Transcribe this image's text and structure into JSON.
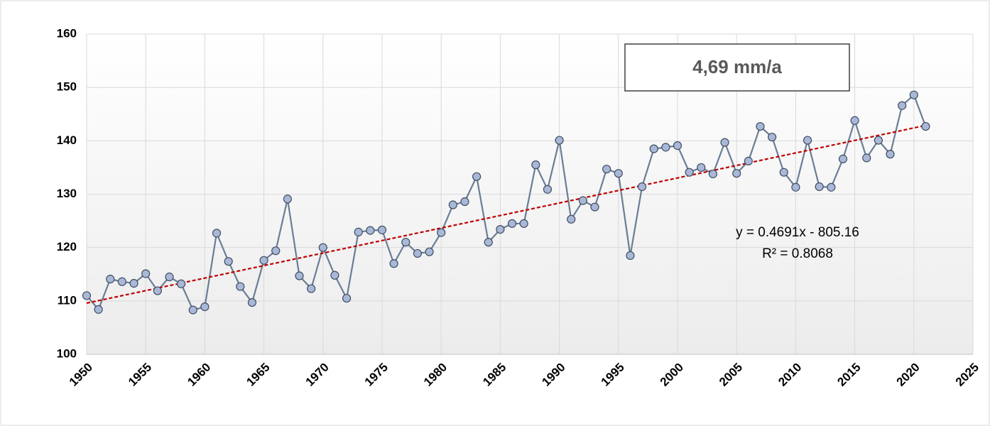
{
  "chart_data": {
    "type": "line",
    "x": [
      1950,
      1951,
      1952,
      1953,
      1954,
      1955,
      1956,
      1957,
      1958,
      1959,
      1960,
      1961,
      1962,
      1963,
      1964,
      1965,
      1966,
      1967,
      1968,
      1969,
      1970,
      1971,
      1972,
      1973,
      1974,
      1975,
      1976,
      1977,
      1978,
      1979,
      1980,
      1981,
      1982,
      1983,
      1984,
      1985,
      1986,
      1987,
      1988,
      1989,
      1990,
      1991,
      1992,
      1993,
      1994,
      1995,
      1996,
      1997,
      1998,
      1999,
      2000,
      2001,
      2002,
      2003,
      2004,
      2005,
      2006,
      2007,
      2008,
      2009,
      2010,
      2011,
      2012,
      2013,
      2014,
      2015,
      2016,
      2017,
      2018,
      2019,
      2020,
      2021
    ],
    "series": [
      {
        "color": "#6a7d96",
        "marker_color": "#a9b8d6",
        "values": [
          111.0,
          108.4,
          114.1,
          113.6,
          113.3,
          115.1,
          111.9,
          114.5,
          113.2,
          108.3,
          108.9,
          122.7,
          117.4,
          112.7,
          109.7,
          117.6,
          119.4,
          129.1,
          114.7,
          112.3,
          120.0,
          114.8,
          110.5,
          122.9,
          123.2,
          123.3,
          117.0,
          121.0,
          118.9,
          119.2,
          122.8,
          128.0,
          128.6,
          133.3,
          121.0,
          123.4,
          124.5,
          124.5,
          135.5,
          130.9,
          140.1,
          125.3,
          128.8,
          127.6,
          134.7,
          133.9,
          118.5,
          131.4,
          138.5,
          138.8,
          139.1,
          134.1,
          135.0,
          133.8,
          139.7,
          133.9,
          136.2,
          142.7,
          140.7,
          134.1,
          131.3,
          140.1,
          131.4,
          131.3,
          136.6,
          143.8,
          136.8,
          140.1,
          137.5,
          146.6,
          148.6,
          142.7
        ]
      }
    ],
    "trendline": {
      "color": "#c00000",
      "x": [
        1950,
        2021
      ],
      "values": [
        109.585,
        142.89
      ]
    },
    "annotations": {
      "box": "4,69 mm/a",
      "equation": "y = 0.4691x - 805.16",
      "r_squared": "R² = 0.8068"
    },
    "xlim": [
      1950,
      2025
    ],
    "xticks": [
      1950,
      1955,
      1960,
      1965,
      1970,
      1975,
      1980,
      1985,
      1990,
      1995,
      2000,
      2005,
      2010,
      2015,
      2020,
      2025
    ],
    "ylim": [
      100,
      160
    ],
    "yticks": [
      100,
      110,
      120,
      130,
      140,
      150,
      160
    ],
    "grid": true
  }
}
